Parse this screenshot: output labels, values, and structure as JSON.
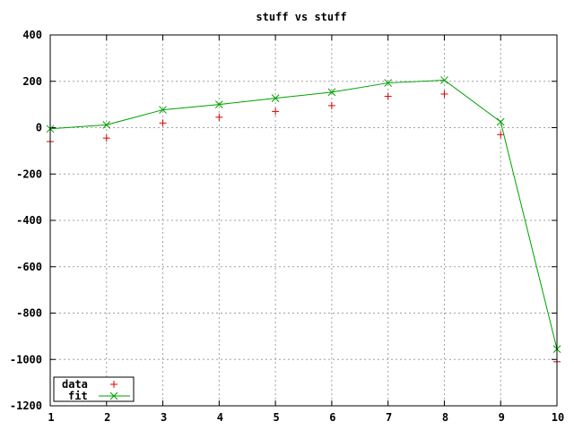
{
  "chart_data": {
    "type": "scatter",
    "title": "stuff vs stuff",
    "xlabel": "",
    "ylabel": "",
    "xlim": [
      1,
      10
    ],
    "ylim": [
      -1200,
      400
    ],
    "xticks": [
      1,
      2,
      3,
      4,
      5,
      6,
      7,
      8,
      9,
      10
    ],
    "yticks": [
      400,
      200,
      0,
      -200,
      -400,
      -600,
      -800,
      -1000,
      -1200
    ],
    "grid": true,
    "legend_position": "bottom-left",
    "series": [
      {
        "name": "data",
        "style": "points",
        "marker": "plus",
        "color": "#e00000",
        "x": [
          1,
          2,
          3,
          4,
          5,
          6,
          7,
          8,
          9,
          10
        ],
        "y": [
          -60,
          -45,
          20,
          45,
          70,
          95,
          135,
          145,
          -30,
          -1010
        ]
      },
      {
        "name": "fit",
        "style": "linespoints",
        "marker": "cross",
        "color": "#00a000",
        "x": [
          1,
          2,
          3,
          4,
          5,
          6,
          7,
          8,
          9,
          10
        ],
        "y": [
          -5,
          12,
          77,
          100,
          127,
          153,
          193,
          205,
          25,
          -955
        ]
      }
    ]
  }
}
